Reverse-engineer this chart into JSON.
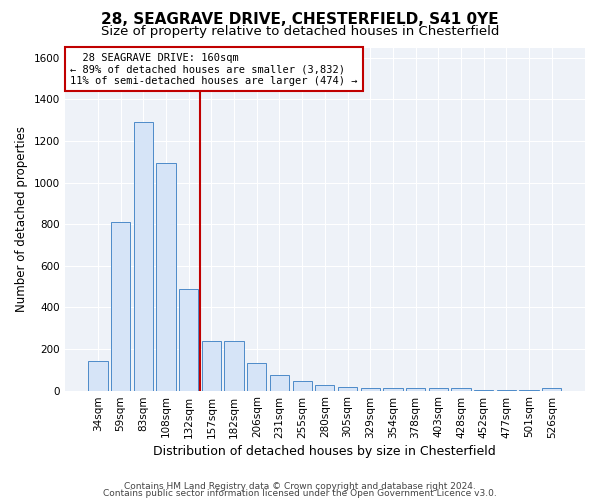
{
  "title1": "28, SEAGRAVE DRIVE, CHESTERFIELD, S41 0YE",
  "title2": "Size of property relative to detached houses in Chesterfield",
  "xlabel": "Distribution of detached houses by size in Chesterfield",
  "ylabel": "Number of detached properties",
  "categories": [
    "34sqm",
    "59sqm",
    "83sqm",
    "108sqm",
    "132sqm",
    "157sqm",
    "182sqm",
    "206sqm",
    "231sqm",
    "255sqm",
    "280sqm",
    "305sqm",
    "329sqm",
    "354sqm",
    "378sqm",
    "403sqm",
    "428sqm",
    "452sqm",
    "477sqm",
    "501sqm",
    "526sqm"
  ],
  "values": [
    140,
    810,
    1290,
    1095,
    490,
    240,
    240,
    135,
    75,
    45,
    25,
    15,
    10,
    10,
    10,
    10,
    10,
    2,
    2,
    2,
    10
  ],
  "bar_color": "#d6e4f7",
  "bar_edge_color": "#4d8bc9",
  "vline_color": "#c00000",
  "annotation_line1": "  28 SEAGRAVE DRIVE: 160sqm",
  "annotation_line2": "← 89% of detached houses are smaller (3,832)",
  "annotation_line3": "11% of semi-detached houses are larger (474) →",
  "annotation_box_color": "white",
  "annotation_box_edge": "#c00000",
  "ylim": [
    0,
    1650
  ],
  "yticks": [
    0,
    200,
    400,
    600,
    800,
    1000,
    1200,
    1400,
    1600
  ],
  "footer1": "Contains HM Land Registry data © Crown copyright and database right 2024.",
  "footer2": "Contains public sector information licensed under the Open Government Licence v3.0.",
  "bg_color": "#eef2f8",
  "title1_fontsize": 11,
  "title2_fontsize": 9.5,
  "xlabel_fontsize": 9,
  "ylabel_fontsize": 8.5,
  "tick_fontsize": 7.5,
  "annotation_fontsize": 7.5,
  "footer_fontsize": 6.5
}
